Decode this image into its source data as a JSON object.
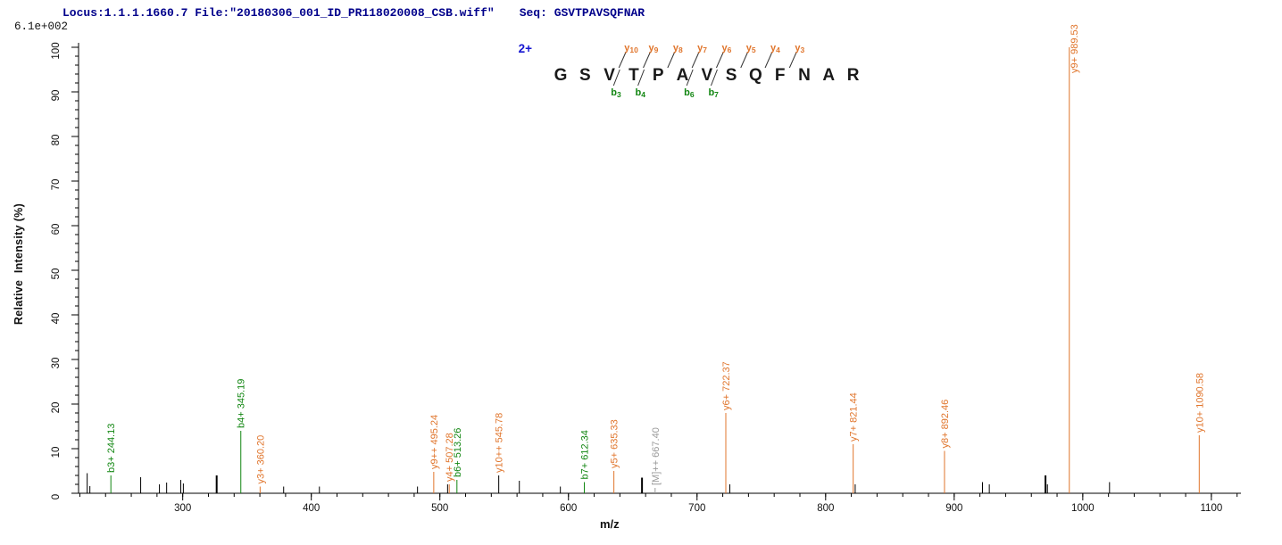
{
  "header": {
    "locus_file": "Locus:1.1.1.1660.7 File:\"20180306_001_ID_PR118020008_CSB.wiff\"",
    "seq": "Seq: GSVTPAVSQFNAR"
  },
  "scale_label": "6.1e+002",
  "sequence_annotation": {
    "charge": "2+",
    "residues": [
      "G",
      "S",
      "V",
      "T",
      "P",
      "A",
      "V",
      "S",
      "Q",
      "F",
      "N",
      "A",
      "R"
    ],
    "y_ions": [
      {
        "label": "y10",
        "boundary": 3
      },
      {
        "label": "y9",
        "boundary": 4
      },
      {
        "label": "y8",
        "boundary": 5
      },
      {
        "label": "y7",
        "boundary": 6
      },
      {
        "label": "y6",
        "boundary": 7
      },
      {
        "label": "y5",
        "boundary": 8
      },
      {
        "label": "y4",
        "boundary": 9
      },
      {
        "label": "y3",
        "boundary": 10
      }
    ],
    "b_ions": [
      {
        "label": "b3",
        "boundary": 3
      },
      {
        "label": "b4",
        "boundary": 4
      },
      {
        "label": "b6",
        "boundary": 6
      },
      {
        "label": "b7",
        "boundary": 7
      }
    ]
  },
  "chart_data": {
    "type": "bar",
    "subtype": "ms2-stick-spectrum",
    "title": "",
    "xlabel": "m/z",
    "ylabel": "Relative  Intensity (%)",
    "xlim": [
      219,
      1123
    ],
    "ylim": [
      0,
      100
    ],
    "x_major_ticks": [
      300,
      400,
      500,
      600,
      700,
      800,
      900,
      1000,
      1100
    ],
    "x_minor_tick_step": 20,
    "y_major_tick_step": 10,
    "y_minor_tick_step": 2,
    "grid": false,
    "legend": "none",
    "colors": {
      "y_ion": "#e0752c",
      "b_ion": "#118611",
      "precursor": "#9a9a9a",
      "unassigned": "#000000",
      "header_text": "#00008b",
      "charge_text": "#1616d1",
      "axis": "#000000"
    },
    "peaks": [
      {
        "mz": 225.7,
        "intensity": 4.5,
        "series": "unassigned"
      },
      {
        "mz": 227.8,
        "intensity": 1.6,
        "series": "unassigned"
      },
      {
        "mz": 244.13,
        "intensity": 4.0,
        "series": "b",
        "label": "b3+ 244.13"
      },
      {
        "mz": 267.3,
        "intensity": 3.6,
        "series": "unassigned"
      },
      {
        "mz": 281.9,
        "intensity": 2.0,
        "series": "unassigned"
      },
      {
        "mz": 287.5,
        "intensity": 2.4,
        "series": "unassigned"
      },
      {
        "mz": 298.5,
        "intensity": 3.0,
        "series": "unassigned"
      },
      {
        "mz": 300.5,
        "intensity": 2.2,
        "series": "unassigned"
      },
      {
        "mz": 326.4,
        "intensity": 4.0,
        "series": "unassigned",
        "bold": true
      },
      {
        "mz": 345.19,
        "intensity": 14.0,
        "series": "b",
        "label": "b4+ 345.19"
      },
      {
        "mz": 360.2,
        "intensity": 1.5,
        "series": "y",
        "label": "y3+ 360.20"
      },
      {
        "mz": 378.5,
        "intensity": 1.5,
        "series": "unassigned"
      },
      {
        "mz": 406.3,
        "intensity": 1.5,
        "series": "unassigned"
      },
      {
        "mz": 482.6,
        "intensity": 1.5,
        "series": "unassigned"
      },
      {
        "mz": 495.24,
        "intensity": 4.8,
        "series": "y",
        "label": "y9++ 495.24"
      },
      {
        "mz": 506.0,
        "intensity": 2.0,
        "series": "unassigned"
      },
      {
        "mz": 507.28,
        "intensity": 2.0,
        "series": "y",
        "label": "y4+ 507.28"
      },
      {
        "mz": 513.26,
        "intensity": 3.0,
        "series": "b",
        "label": "b6+ 513.26"
      },
      {
        "mz": 545.78,
        "intensity": 4.0,
        "series": "y",
        "label": "y10++ 545.78",
        "stick": "unassigned"
      },
      {
        "mz": 561.8,
        "intensity": 2.8,
        "series": "unassigned"
      },
      {
        "mz": 593.7,
        "intensity": 1.5,
        "series": "unassigned"
      },
      {
        "mz": 612.34,
        "intensity": 2.5,
        "series": "b",
        "label": "b7+ 612.34"
      },
      {
        "mz": 635.33,
        "intensity": 5.0,
        "series": "y",
        "label": "y5+ 635.33"
      },
      {
        "mz": 657.2,
        "intensity": 3.5,
        "series": "unassigned",
        "bold": true
      },
      {
        "mz": 667.4,
        "intensity": 1.2,
        "series": "precursor",
        "label": "[M]++ 667.40"
      },
      {
        "mz": 722.37,
        "intensity": 18.0,
        "series": "y",
        "label": "y6+ 722.37"
      },
      {
        "mz": 725.5,
        "intensity": 2.0,
        "series": "unassigned"
      },
      {
        "mz": 821.44,
        "intensity": 11.0,
        "series": "y",
        "label": "y7+ 821.44"
      },
      {
        "mz": 823.0,
        "intensity": 2.0,
        "series": "unassigned"
      },
      {
        "mz": 892.46,
        "intensity": 9.5,
        "series": "y",
        "label": "y8+ 892.46"
      },
      {
        "mz": 922.0,
        "intensity": 2.5,
        "series": "unassigned"
      },
      {
        "mz": 927.3,
        "intensity": 2.0,
        "series": "unassigned"
      },
      {
        "mz": 971.0,
        "intensity": 4.0,
        "series": "unassigned",
        "bold": true
      },
      {
        "mz": 972.5,
        "intensity": 2.0,
        "series": "unassigned"
      },
      {
        "mz": 989.53,
        "intensity": 100.0,
        "series": "y",
        "label": "y9+ 989.53"
      },
      {
        "mz": 1020.8,
        "intensity": 2.5,
        "series": "unassigned"
      },
      {
        "mz": 1090.58,
        "intensity": 13.0,
        "series": "y",
        "label": "y10+ 1090.58"
      }
    ]
  }
}
